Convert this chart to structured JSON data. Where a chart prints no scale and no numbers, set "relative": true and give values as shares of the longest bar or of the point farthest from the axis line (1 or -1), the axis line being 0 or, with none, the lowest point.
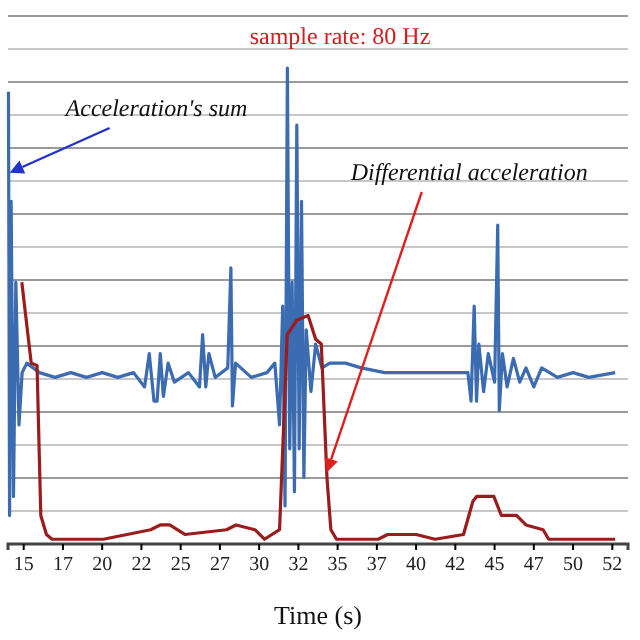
{
  "chart_data": {
    "type": "line",
    "title": "sample rate:  80 Hz",
    "xlabel": "Time (s)",
    "relative": true,
    "grid": "y",
    "marker": "none",
    "line_style": "solid",
    "xlim": [
      14,
      53.5
    ],
    "xticks": [
      15,
      {
        "value": 17.5,
        "label": "17"
      },
      20,
      {
        "value": 22.5,
        "label": "22"
      },
      25,
      {
        "value": 27.5,
        "label": "27"
      },
      30,
      {
        "value": 32.5,
        "label": "32"
      },
      35,
      {
        "value": 37.5,
        "label": "37"
      },
      40,
      {
        "value": 42.5,
        "label": "42"
      },
      45,
      {
        "value": 47.5,
        "label": "47"
      },
      50,
      {
        "value": 52.5,
        "label": "52"
      }
    ],
    "series": [
      {
        "color": "#3b6bb0",
        "x": [
          14.03,
          14.1,
          14.2,
          14.35,
          14.5,
          14.7,
          14.9,
          15.2,
          16,
          17,
          18,
          19,
          20,
          21,
          22,
          22.7,
          23,
          23.3,
          23.5,
          23.7,
          23.9,
          24.2,
          24.6,
          25.5,
          26.2,
          26.4,
          26.6,
          26.8,
          27.2,
          28,
          28.2,
          28.3,
          28.5,
          29.5,
          30.5,
          31,
          31.3,
          31.5,
          31.65,
          31.8,
          31.95,
          32.1,
          32.25,
          32.4,
          32.55,
          32.7,
          32.85,
          33,
          33.3,
          33.6,
          34,
          34.5,
          35.5,
          36.5,
          38,
          40,
          42,
          43.3,
          43.5,
          43.7,
          43.85,
          44,
          44.3,
          44.6,
          45,
          45.2,
          45.3,
          45.5,
          45.8,
          46.2,
          46.6,
          47,
          47.5,
          48,
          49,
          50,
          51,
          52.68
        ],
        "values": [
          0.95,
          0.06,
          0.72,
          0.1,
          0.55,
          0.25,
          0.36,
          0.38,
          0.36,
          0.35,
          0.36,
          0.35,
          0.36,
          0.35,
          0.36,
          0.33,
          0.4,
          0.3,
          0.3,
          0.4,
          0.31,
          0.38,
          0.34,
          0.36,
          0.33,
          0.44,
          0.33,
          0.4,
          0.35,
          0.37,
          0.58,
          0.29,
          0.38,
          0.35,
          0.36,
          0.38,
          0.25,
          0.5,
          0.08,
          1,
          0.2,
          0.55,
          0.11,
          0.88,
          0.2,
          0.72,
          0.14,
          0.45,
          0.32,
          0.42,
          0.37,
          0.38,
          0.38,
          0.37,
          0.36,
          0.36,
          0.36,
          0.36,
          0.3,
          0.5,
          0.3,
          0.42,
          0.32,
          0.4,
          0.34,
          0.67,
          0.28,
          0.4,
          0.33,
          0.39,
          0.34,
          0.37,
          0.33,
          0.37,
          0.35,
          0.36,
          0.35,
          0.36
        ]
      },
      {
        "color": "#9b1c1c",
        "x": [
          14.88,
          15.48,
          15.85,
          16.09,
          16.45,
          16.81,
          20.07,
          23.09,
          23.7,
          24.3,
          25.27,
          27.92,
          28.53,
          29.73,
          30.34,
          31.3,
          31.79,
          32.39,
          33.12,
          33.6,
          33.96,
          34.32,
          34.57,
          34.93,
          37.58,
          38.19,
          40,
          41.21,
          43.02,
          43.62,
          43.86,
          44.95,
          45.43,
          46.4,
          47,
          48.09,
          48.45,
          52.68
        ],
        "values": [
          0.55,
          0.38,
          0.375,
          0.06,
          0.02,
          0.01,
          0.01,
          0.03,
          0.04,
          0.04,
          0.02,
          0.03,
          0.04,
          0.03,
          0.01,
          0.03,
          0.44,
          0.47,
          0.48,
          0.43,
          0.42,
          0.14,
          0.03,
          0.01,
          0.01,
          0.02,
          0.02,
          0.01,
          0.02,
          0.09,
          0.1,
          0.1,
          0.06,
          0.06,
          0.04,
          0.03,
          0.01,
          0.01
        ]
      }
    ],
    "annotations": [
      {
        "text": "Acceleration's sum",
        "x": 14.1,
        "y": 0.78
      },
      {
        "text": "Differential acceleration",
        "x": 34.3,
        "y": 0.15
      }
    ]
  }
}
